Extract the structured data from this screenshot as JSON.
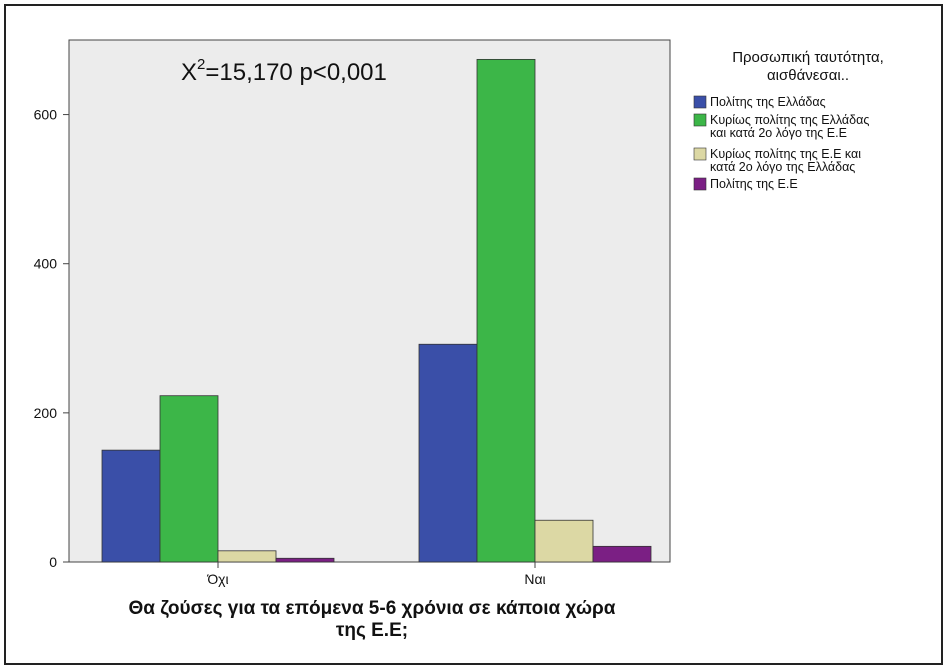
{
  "chart_data": {
    "type": "bar",
    "categories": [
      "Όχι",
      "Ναι"
    ],
    "series": [
      {
        "name": "Πολίτης της Ελλάδας",
        "values": [
          150,
          292
        ],
        "color": "#3a4fa8"
      },
      {
        "name": "Κυρίως πολίτης της Ελλάδας και κατά 2ο λόγο της Ε.Ε",
        "values": [
          223,
          674
        ],
        "color": "#3cb648"
      },
      {
        "name": "Κυρίως πολίτης της Ε.Ε και κατά 2ο λόγο της Ελλάδας",
        "values": [
          15,
          56
        ],
        "color": "#dcd8a4"
      },
      {
        "name": "Πολίτης της Ε.Ε",
        "values": [
          5,
          21
        ],
        "color": "#7b1f84"
      }
    ],
    "legend_title_lines": [
      "Προσωπική ταυτότητα,",
      "αισθάνεσαι.."
    ],
    "legend_label_lines": [
      [
        "Πολίτης της Ελλάδας"
      ],
      [
        "Κυρίως πολίτης της Ελλάδας",
        "και κατά 2ο λόγο της Ε.Ε"
      ],
      [
        "Κυρίως πολίτης της Ε.Ε και",
        "κατά 2ο λόγο της Ελλάδας"
      ],
      [
        "Πολίτης της Ε.Ε"
      ]
    ],
    "legend_position": "top-right",
    "xlabel_lines": [
      "Θα ζούσες για τα επόμενα 5-6 χρόνια σε κάποια χώρα",
      "της Ε.Ε;"
    ],
    "ylabel": "",
    "ylim": [
      0,
      700
    ],
    "yticks": [
      0,
      200,
      400,
      600
    ],
    "grid": false,
    "plot_background": "#ececec",
    "annotation": {
      "base": "X",
      "sup": "2",
      "rest": "=15,170 p<0,001"
    }
  }
}
